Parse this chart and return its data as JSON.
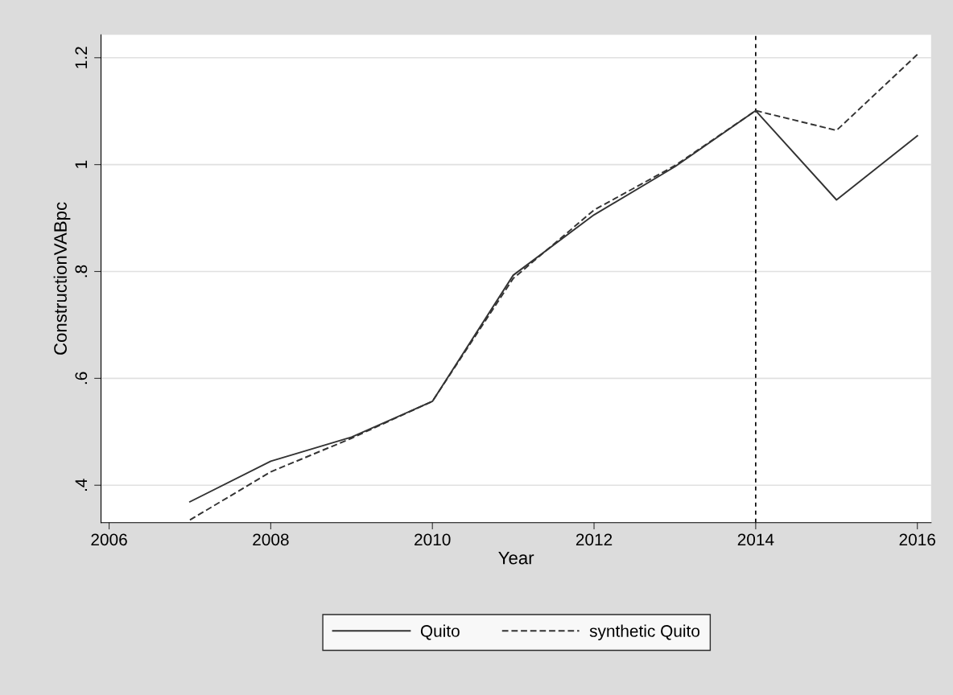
{
  "chart_data": {
    "type": "line",
    "xlabel": "Year",
    "ylabel": "ConstructionVABpc",
    "x": [
      2007,
      2008,
      2009,
      2010,
      2011,
      2012,
      2013,
      2014,
      2015,
      2016
    ],
    "series": [
      {
        "name": "Quito",
        "color": "#333333",
        "line_style": "solid",
        "values": [
          0.369,
          0.445,
          0.49,
          0.557,
          0.793,
          0.906,
          0.996,
          1.101,
          0.934,
          1.054
        ]
      },
      {
        "name": "synthetic Quito",
        "color": "#333333",
        "line_style": "dashed",
        "values": [
          0.335,
          0.425,
          0.488,
          0.557,
          0.787,
          0.915,
          0.998,
          1.101,
          1.064,
          1.206
        ]
      }
    ],
    "xlim": [
      2005.9,
      2016.17
    ],
    "xticks": [
      2006,
      2008,
      2010,
      2012,
      2014,
      2016
    ],
    "ylim": [
      0.33,
      1.243
    ],
    "yticks": [
      {
        "value": 0.4,
        "label": ".4"
      },
      {
        "value": 0.6,
        "label": ".6"
      },
      {
        "value": 0.8,
        "label": ".8"
      },
      {
        "value": 1,
        "label": "1"
      },
      {
        "value": 1.2,
        "label": "1.2"
      }
    ],
    "ref_lines": [
      {
        "axis": "x",
        "value": 2014,
        "color": "#000000",
        "line_style": "dotted"
      }
    ],
    "grid": "y",
    "legend": "bottom",
    "marker": "none"
  }
}
